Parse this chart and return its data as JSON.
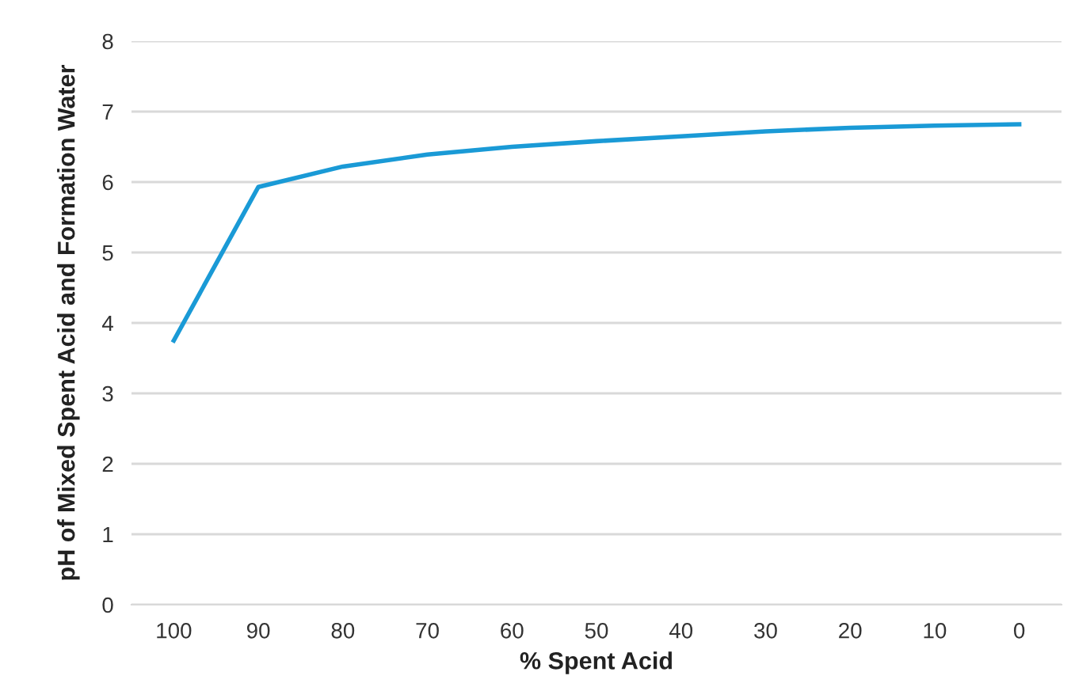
{
  "chart_data": {
    "type": "line",
    "xlabel": "% Spent Acid",
    "ylabel": "pH of Mixed Spent Acid and Formation Water",
    "categories": [
      "100",
      "90",
      "80",
      "70",
      "60",
      "50",
      "40",
      "30",
      "20",
      "10",
      "0"
    ],
    "series": [
      {
        "color": "#1a9ad6",
        "values": [
          3.75,
          5.93,
          6.22,
          6.39,
          6.5,
          6.58,
          6.65,
          6.72,
          6.77,
          6.8,
          6.82
        ]
      }
    ],
    "ylim": [
      0,
      8
    ],
    "yticks": [
      0,
      1,
      2,
      3,
      4,
      5,
      6,
      7,
      8
    ],
    "grid": "y",
    "marker": "none",
    "line_style": "solid"
  }
}
